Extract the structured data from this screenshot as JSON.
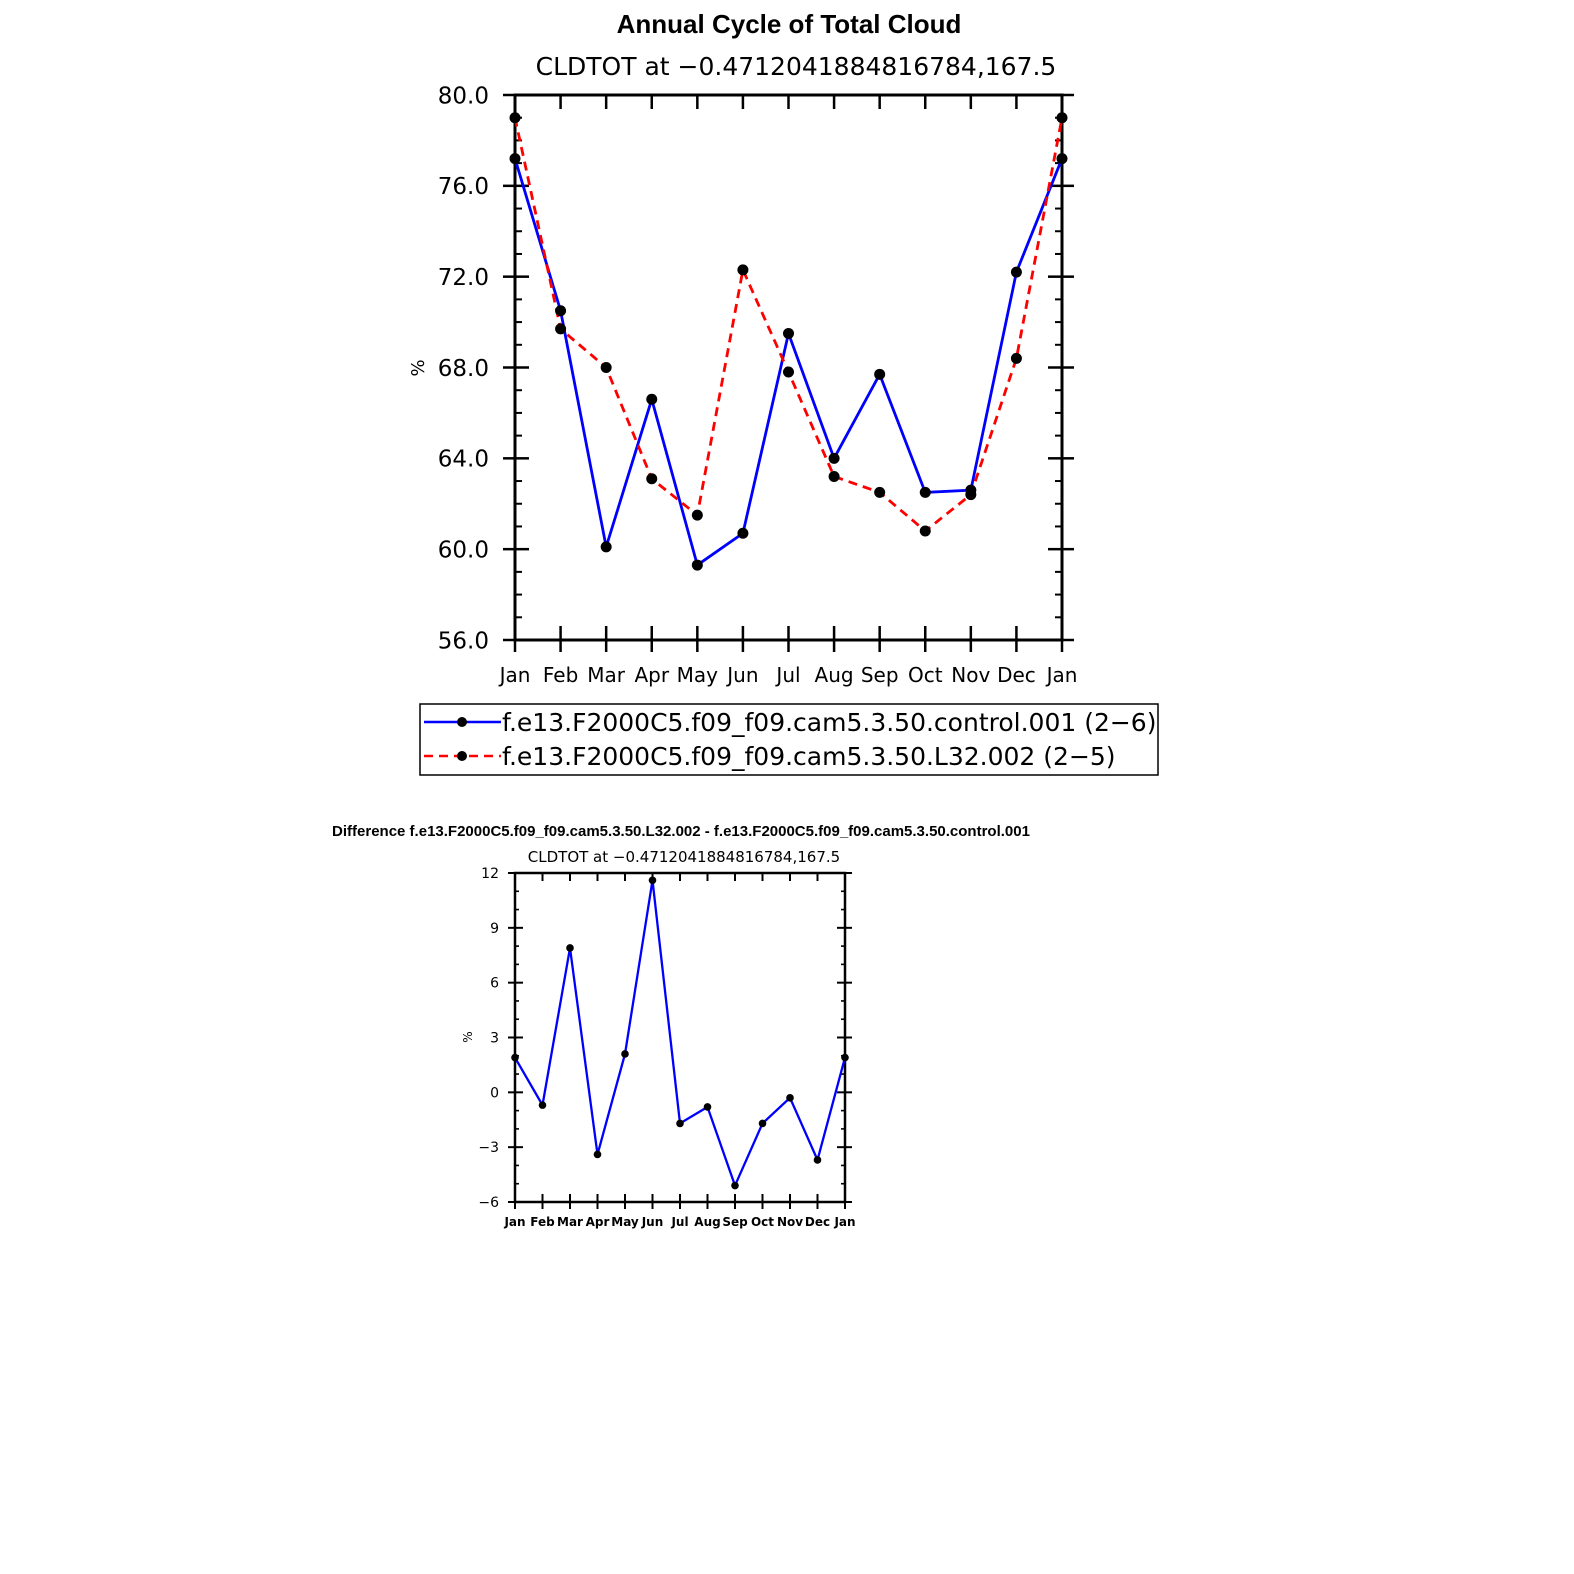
{
  "chart_data": [
    {
      "type": "line",
      "title": "Annual Cycle of Total Cloud",
      "subtitle": "CLDTOT at −0.4712041884816784,167.5",
      "ylabel": "%",
      "ylim": [
        56.0,
        80.0
      ],
      "y_ticks": [
        "56.0",
        "60.0",
        "64.0",
        "68.0",
        "72.0",
        "76.0",
        "80.0"
      ],
      "categories": [
        "Jan",
        "Feb",
        "Mar",
        "Apr",
        "May",
        "Jun",
        "Jul",
        "Aug",
        "Sep",
        "Oct",
        "Nov",
        "Dec",
        "Jan"
      ],
      "legend_position": "bottom",
      "series": [
        {
          "name": "f.e13.F2000C5.f09_f09.cam5.3.50.control.001 (2−6)",
          "color": "#0000ff",
          "style": "solid",
          "values": [
            77.2,
            70.5,
            60.1,
            66.6,
            59.3,
            60.7,
            69.5,
            64.0,
            67.7,
            62.5,
            62.6,
            72.2,
            77.2
          ]
        },
        {
          "name": "f.e13.F2000C5.f09_f09.cam5.3.50.L32.002 (2−5)",
          "color": "#ff0000",
          "style": "dashed",
          "values": [
            79.0,
            69.7,
            68.0,
            63.1,
            61.5,
            72.3,
            67.8,
            63.2,
            62.5,
            60.8,
            62.4,
            68.4,
            79.0
          ]
        }
      ]
    },
    {
      "type": "line",
      "title": "Difference f.e13.F2000C5.f09_f09.cam5.3.50.L32.002 - f.e13.F2000C5.f09_f09.cam5.3.50.control.001",
      "subtitle": "CLDTOT at −0.4712041884816784,167.5",
      "ylabel": "%",
      "ylim": [
        -6,
        12
      ],
      "y_ticks": [
        "−6",
        "−3",
        "0",
        "3",
        "6",
        "9",
        "12"
      ],
      "categories": [
        "Jan",
        "Feb",
        "Mar",
        "Apr",
        "May",
        "Jun",
        "Jul",
        "Aug",
        "Sep",
        "Oct",
        "Nov",
        "Dec",
        "Jan"
      ],
      "series": [
        {
          "color": "#0000ff",
          "style": "solid",
          "values": [
            1.9,
            -0.7,
            7.9,
            -3.4,
            2.1,
            11.6,
            -1.7,
            -0.8,
            -5.1,
            -1.7,
            -0.3,
            -3.7,
            1.9
          ]
        }
      ]
    }
  ]
}
